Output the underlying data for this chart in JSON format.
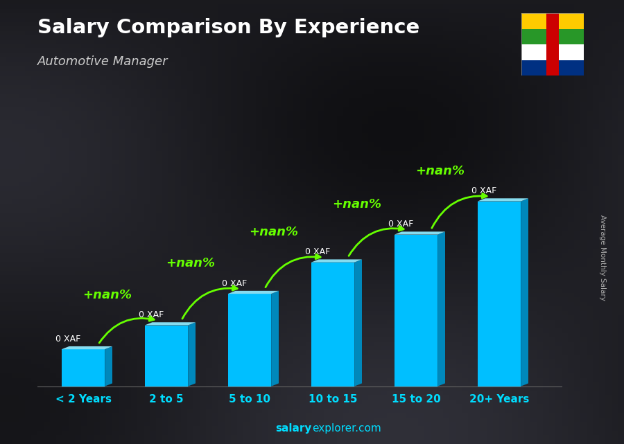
{
  "title": "Salary Comparison By Experience",
  "subtitle": "Automotive Manager",
  "categories": [
    "< 2 Years",
    "2 to 5",
    "5 to 10",
    "10 to 15",
    "15 to 20",
    "20+ Years"
  ],
  "bar_heights": [
    1.0,
    1.65,
    2.5,
    3.35,
    4.1,
    5.0
  ],
  "bar_color": "#00BFFF",
  "bar_color_top": "#87DCEF",
  "bar_color_side": "#0088BB",
  "bar_labels": [
    "0 XAF",
    "0 XAF",
    "0 XAF",
    "0 XAF",
    "0 XAF",
    "0 XAF"
  ],
  "pct_labels": [
    "+nan%",
    "+nan%",
    "+nan%",
    "+nan%",
    "+nan%"
  ],
  "title_color": "#FFFFFF",
  "subtitle_color": "#DDDDDD",
  "pct_color": "#66FF00",
  "arrow_color": "#66FF00",
  "bg_color": "#2a2a2a",
  "ylabel": "Average Monthly Salary",
  "footer_salary": "salary",
  "footer_rest": "explorer.com",
  "bar_width": 0.52,
  "depth_x": 0.09,
  "depth_y": 0.08,
  "xlim": [
    -0.55,
    5.75
  ],
  "ylim": [
    0,
    7.2
  ],
  "flag_stripes": [
    "#003082",
    "#FFFFFF",
    "#289728",
    "#FFCB00"
  ],
  "flag_red": "#CC0001",
  "flag_star": "#FFCB00"
}
